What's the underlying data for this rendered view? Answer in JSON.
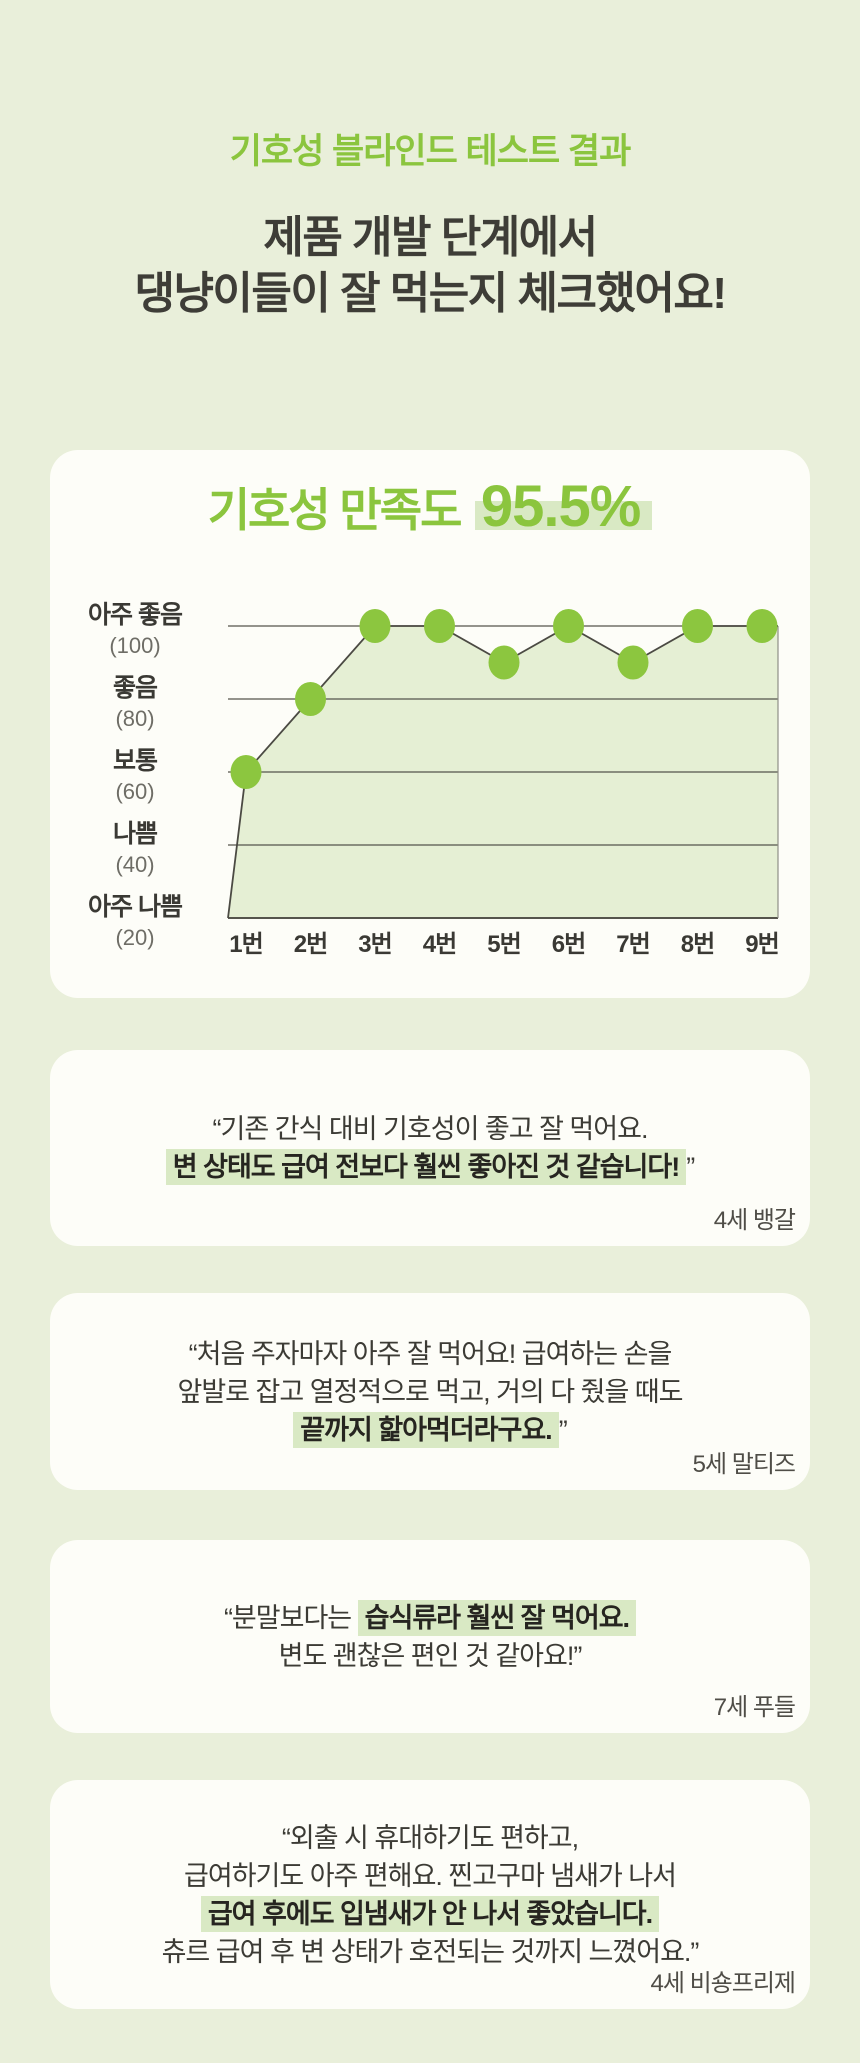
{
  "theme": {
    "page_bg": "#e9efda",
    "card_bg": "#fdfdf8",
    "accent_green": "#8bc53e",
    "point_green": "#8cc63f",
    "highlight_green": "#d9e9c4",
    "area_fill_green": "#e5efd4",
    "text_dark": "#3e3d37"
  },
  "header": {
    "eyebrow": "기호성 블라인드 테스트 결과",
    "title_line1": "제품 개발 단계에서",
    "title_line2": "댕냥이들이 잘 먹는지 체크했어요!"
  },
  "chart_card": {
    "title_label": "기호성 만족도",
    "title_value": "95.5%"
  },
  "chart_data": {
    "type": "line",
    "title": "기호성 만족도 95.5%",
    "categories": [
      "1번",
      "2번",
      "3번",
      "4번",
      "5번",
      "6번",
      "7번",
      "8번",
      "9번"
    ],
    "values": [
      60,
      80,
      100,
      100,
      90,
      100,
      90,
      100,
      100
    ],
    "y_ticks": [
      {
        "label": "아주 좋음",
        "value_label": "(100)",
        "value": 100
      },
      {
        "label": "좋음",
        "value_label": "(80)",
        "value": 80
      },
      {
        "label": "보통",
        "value_label": "(60)",
        "value": 60
      },
      {
        "label": "나쁨",
        "value_label": "(40)",
        "value": 40
      },
      {
        "label": "아주 나쁨",
        "value_label": "(20)",
        "value": 20
      }
    ],
    "ylim": [
      20,
      100
    ],
    "grid": true,
    "area_fill": true,
    "legend": "none",
    "colors": {
      "point": "#8cc63f",
      "area": "#e5efd4",
      "line": "#4b4a43",
      "gridline": "#55544c",
      "plot_border": "#8f8f87"
    }
  },
  "testimonials": [
    {
      "lines": [
        [
          {
            "text": "“기존 간식 대비 기호성이 좋고 잘 먹어요.",
            "style": "regular"
          }
        ],
        [
          {
            "text": "변 상태도 급여 전보다 훨씬 좋아진 것 같습니다!",
            "style": "highlight"
          },
          {
            "text": "”",
            "style": "regular"
          }
        ]
      ],
      "author": "4세 뱅갈"
    },
    {
      "lines": [
        [
          {
            "text": "“처음 주자마자 아주 잘 먹어요! 급여하는 손을",
            "style": "regular"
          }
        ],
        [
          {
            "text": "앞발로 잡고 열정적으로 먹고, 거의 다 줬을 때도",
            "style": "regular"
          }
        ],
        [
          {
            "text": "끝까지 핥아먹더라구요.",
            "style": "highlight"
          },
          {
            "text": "”",
            "style": "regular"
          }
        ]
      ],
      "author": "5세 말티즈"
    },
    {
      "lines": [
        [
          {
            "text": "“분말보다는 ",
            "style": "regular"
          },
          {
            "text": "습식류라 훨씬 잘 먹어요.",
            "style": "highlight"
          }
        ],
        [
          {
            "text": "변도 괜찮은 편인 것 같아요!”",
            "style": "regular"
          }
        ]
      ],
      "author": "7세 푸들"
    },
    {
      "lines": [
        [
          {
            "text": "“외출 시 휴대하기도 편하고,",
            "style": "regular"
          }
        ],
        [
          {
            "text": "급여하기도 아주 편해요. 찐고구마 냄새가 나서",
            "style": "regular"
          }
        ],
        [
          {
            "text": "급여 후에도 입냄새가 안 나서 좋았습니다.",
            "style": "highlight"
          }
        ],
        [
          {
            "text": "츄르 급여 후 변 상태가 호전되는 것까지 느꼈어요.”",
            "style": "regular"
          }
        ]
      ],
      "author": "4세 비숑프리제"
    }
  ]
}
